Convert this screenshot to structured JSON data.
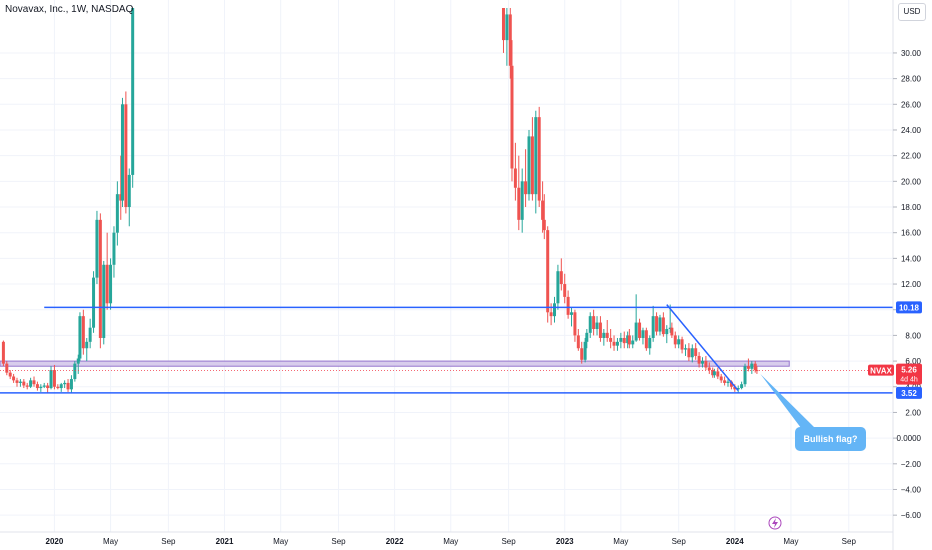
{
  "header": {
    "title": "Novavax, Inc., 1W, NASDAQ",
    "currency_label": "USD"
  },
  "colors": {
    "up": "#26a69a",
    "down": "#ef5350",
    "level_line": "#2962ff",
    "zone_fill": "#d1c4e9",
    "zone_border": "#9575cd",
    "price_tag": "#f23645",
    "callout": "#64b5f6"
  },
  "chart_data": {
    "type": "candlestick",
    "title": "Novavax, Inc., 1W, NASDAQ",
    "ylim": [
      -7.0,
      33.5
    ],
    "y_ticks": [
      "30.00",
      "28.00",
      "26.00",
      "24.00",
      "22.00",
      "20.00",
      "18.00",
      "16.00",
      "14.00",
      "12.00",
      "10.00",
      "8.00",
      "6.00",
      "4.00",
      "2.00",
      "0.0000",
      "−2.00",
      "−4.00",
      "−6.00"
    ],
    "y_tick_values": [
      30,
      28,
      26,
      24,
      22,
      20,
      18,
      16,
      14,
      12,
      10,
      8,
      6,
      4,
      2,
      0,
      -2,
      -4,
      -6
    ],
    "x_ticks": [
      {
        "label": "2020",
        "t": 2020.0,
        "bold": true
      },
      {
        "label": "May",
        "t": 2020.33,
        "bold": false
      },
      {
        "label": "Sep",
        "t": 2020.67,
        "bold": false
      },
      {
        "label": "2021",
        "t": 2021.0,
        "bold": true
      },
      {
        "label": "May",
        "t": 2021.33,
        "bold": false
      },
      {
        "label": "Sep",
        "t": 2021.67,
        "bold": false
      },
      {
        "label": "2022",
        "t": 2022.0,
        "bold": true
      },
      {
        "label": "May",
        "t": 2022.33,
        "bold": false
      },
      {
        "label": "Sep",
        "t": 2022.67,
        "bold": false
      },
      {
        "label": "2023",
        "t": 2023.0,
        "bold": true
      },
      {
        "label": "May",
        "t": 2023.33,
        "bold": false
      },
      {
        "label": "Sep",
        "t": 2023.67,
        "bold": false
      },
      {
        "label": "2024",
        "t": 2024.0,
        "bold": true
      },
      {
        "label": "May",
        "t": 2024.33,
        "bold": false
      },
      {
        "label": "Sep",
        "t": 2024.67,
        "bold": false
      }
    ],
    "xlim": [
      2019.68,
      2024.93
    ],
    "candles": [
      [
        2019.7,
        7.5,
        7.6,
        5.6,
        5.8
      ],
      [
        2019.72,
        5.8,
        6.0,
        4.9,
        5.1
      ],
      [
        2019.74,
        5.1,
        5.3,
        4.6,
        4.8
      ],
      [
        2019.76,
        4.8,
        5.0,
        4.3,
        4.5
      ],
      [
        2019.78,
        4.5,
        4.7,
        4.0,
        4.3
      ],
      [
        2019.8,
        4.3,
        4.6,
        4.0,
        4.4
      ],
      [
        2019.82,
        4.4,
        4.6,
        3.9,
        4.1
      ],
      [
        2019.84,
        4.1,
        4.3,
        3.8,
        4.0
      ],
      [
        2019.86,
        4.0,
        4.7,
        3.9,
        4.5
      ],
      [
        2019.88,
        4.5,
        4.8,
        4.0,
        4.2
      ],
      [
        2019.9,
        4.2,
        4.4,
        3.7,
        3.9
      ],
      [
        2019.92,
        3.9,
        4.2,
        3.6,
        4.0
      ],
      [
        2019.94,
        4.0,
        4.3,
        3.9,
        4.1
      ],
      [
        2019.96,
        4.1,
        4.3,
        3.5,
        3.9
      ],
      [
        2019.98,
        3.9,
        5.6,
        3.8,
        5.3
      ],
      [
        2020.0,
        5.3,
        5.7,
        3.8,
        4.0
      ],
      [
        2020.02,
        4.0,
        4.2,
        3.8,
        3.9
      ],
      [
        2020.04,
        3.9,
        4.3,
        3.6,
        4.2
      ],
      [
        2020.06,
        4.2,
        4.5,
        3.9,
        4.3
      ],
      [
        2020.08,
        4.3,
        4.6,
        3.6,
        3.8
      ],
      [
        2020.1,
        3.8,
        4.9,
        3.5,
        4.6
      ],
      [
        2020.12,
        4.6,
        6.0,
        4.4,
        5.8
      ],
      [
        2020.14,
        5.8,
        6.5,
        5.0,
        6.2
      ],
      [
        2020.15,
        6.2,
        9.8,
        6.0,
        9.5
      ],
      [
        2020.17,
        9.5,
        10.0,
        6.5,
        7.0
      ],
      [
        2020.19,
        7.0,
        7.8,
        6.0,
        7.5
      ],
      [
        2020.21,
        7.5,
        9.3,
        7.0,
        8.6
      ],
      [
        2020.23,
        8.6,
        13.0,
        8.2,
        12.5
      ],
      [
        2020.25,
        12.5,
        17.7,
        12.0,
        17.0
      ],
      [
        2020.27,
        17.0,
        17.5,
        7.0,
        7.8
      ],
      [
        2020.29,
        7.8,
        13.8,
        7.3,
        13.5
      ],
      [
        2020.31,
        13.5,
        16.0,
        10.0,
        10.5
      ],
      [
        2020.33,
        10.5,
        14.0,
        10.0,
        13.5
      ],
      [
        2020.35,
        13.5,
        16.5,
        12.5,
        16.0
      ],
      [
        2020.37,
        16.0,
        20.0,
        15.0,
        19.0
      ],
      [
        2020.39,
        19.0,
        22.0,
        17.0,
        18.5
      ],
      [
        2020.4,
        18.5,
        26.5,
        18.0,
        26.0
      ],
      [
        2020.42,
        26.0,
        27.0,
        17.5,
        18.0
      ],
      [
        2020.44,
        18.0,
        21.0,
        16.5,
        20.5
      ],
      [
        2020.46,
        20.5,
        34.0,
        19.5,
        34.0
      ],
      [
        2022.64,
        33.5,
        34.0,
        30.0,
        31.0
      ],
      [
        2022.66,
        31.0,
        34.0,
        29.0,
        33.0
      ],
      [
        2022.68,
        33.0,
        34.0,
        28.0,
        29.0
      ],
      [
        2022.69,
        29.0,
        31.0,
        20.0,
        21.0
      ],
      [
        2022.71,
        21.0,
        23.0,
        18.5,
        19.5
      ],
      [
        2022.73,
        19.5,
        22.0,
        16.2,
        17.0
      ],
      [
        2022.75,
        17.0,
        21.0,
        16.0,
        20.0
      ],
      [
        2022.77,
        20.0,
        22.5,
        18.0,
        19.0
      ],
      [
        2022.79,
        19.0,
        24.0,
        18.5,
        23.5
      ],
      [
        2022.81,
        23.5,
        25.0,
        18.5,
        19.0
      ],
      [
        2022.83,
        19.0,
        25.5,
        17.5,
        25.0
      ],
      [
        2022.85,
        25.0,
        25.8,
        18.0,
        18.5
      ],
      [
        2022.87,
        18.5,
        20.0,
        16.0,
        17.0
      ],
      [
        2022.88,
        17.0,
        19.0,
        15.5,
        16.2
      ],
      [
        2022.9,
        16.2,
        16.5,
        9.0,
        9.8
      ],
      [
        2022.92,
        9.8,
        10.5,
        8.8,
        9.5
      ],
      [
        2022.94,
        9.5,
        11.0,
        9.0,
        10.5
      ],
      [
        2022.96,
        10.5,
        13.5,
        10.0,
        13.0
      ],
      [
        2022.98,
        13.0,
        14.0,
        11.5,
        12.0
      ],
      [
        2023.0,
        12.0,
        12.8,
        10.5,
        11.0
      ],
      [
        2023.02,
        11.0,
        11.5,
        9.3,
        9.6
      ],
      [
        2023.04,
        9.6,
        10.2,
        8.7,
        9.8
      ],
      [
        2023.06,
        9.8,
        10.0,
        7.5,
        8.0
      ],
      [
        2023.08,
        8.0,
        8.5,
        6.8,
        7.0
      ],
      [
        2023.1,
        7.0,
        7.5,
        5.8,
        6.1
      ],
      [
        2023.12,
        6.1,
        7.8,
        5.9,
        7.5
      ],
      [
        2023.13,
        7.5,
        8.5,
        7.0,
        8.2
      ],
      [
        2023.15,
        8.2,
        9.8,
        7.8,
        9.5
      ],
      [
        2023.17,
        9.5,
        10.0,
        8.0,
        8.5
      ],
      [
        2023.19,
        8.5,
        9.5,
        8.0,
        9.0
      ],
      [
        2023.21,
        9.0,
        9.5,
        7.5,
        7.8
      ],
      [
        2023.23,
        7.8,
        8.5,
        7.2,
        8.2
      ],
      [
        2023.25,
        8.2,
        9.2,
        7.5,
        7.8
      ],
      [
        2023.27,
        7.8,
        8.5,
        7.0,
        7.5
      ],
      [
        2023.29,
        7.5,
        8.0,
        6.8,
        7.2
      ],
      [
        2023.31,
        7.2,
        7.8,
        6.8,
        7.5
      ],
      [
        2023.33,
        7.5,
        8.2,
        7.0,
        7.8
      ],
      [
        2023.35,
        7.8,
        8.3,
        7.0,
        7.4
      ],
      [
        2023.37,
        7.4,
        8.3,
        7.0,
        8.0
      ],
      [
        2023.38,
        8.0,
        8.5,
        7.0,
        7.3
      ],
      [
        2023.4,
        7.3,
        8.0,
        7.0,
        7.6
      ],
      [
        2023.42,
        7.6,
        11.2,
        7.5,
        9.0
      ],
      [
        2023.44,
        9.0,
        9.3,
        7.6,
        7.8
      ],
      [
        2023.46,
        7.8,
        8.6,
        7.3,
        8.4
      ],
      [
        2023.48,
        8.4,
        8.6,
        6.8,
        7.0
      ],
      [
        2023.5,
        7.0,
        8.0,
        6.5,
        7.8
      ],
      [
        2023.52,
        7.8,
        10.3,
        7.5,
        9.5
      ],
      [
        2023.54,
        9.5,
        9.8,
        8.0,
        8.3
      ],
      [
        2023.56,
        8.3,
        9.6,
        8.0,
        9.4
      ],
      [
        2023.58,
        9.4,
        9.8,
        7.9,
        8.1
      ],
      [
        2023.6,
        8.1,
        8.8,
        7.4,
        8.5
      ],
      [
        2023.62,
        8.5,
        10.4,
        8.2,
        8.6
      ],
      [
        2023.63,
        8.6,
        9.0,
        7.8,
        8.0
      ],
      [
        2023.65,
        8.0,
        8.3,
        7.0,
        7.3
      ],
      [
        2023.67,
        7.3,
        8.0,
        7.0,
        7.7
      ],
      [
        2023.69,
        7.7,
        7.9,
        6.6,
        6.9
      ],
      [
        2023.71,
        6.9,
        7.3,
        6.4,
        7.0
      ],
      [
        2023.73,
        7.0,
        7.4,
        6.0,
        6.3
      ],
      [
        2023.75,
        6.3,
        7.3,
        5.9,
        7.0
      ],
      [
        2023.77,
        7.0,
        7.4,
        6.1,
        6.4
      ],
      [
        2023.79,
        6.4,
        6.7,
        5.5,
        5.8
      ],
      [
        2023.81,
        5.8,
        6.3,
        5.5,
        6.0
      ],
      [
        2023.83,
        6.0,
        6.4,
        5.3,
        5.5
      ],
      [
        2023.85,
        5.5,
        5.9,
        5.0,
        5.3
      ],
      [
        2023.87,
        5.3,
        5.5,
        4.7,
        4.9
      ],
      [
        2023.88,
        4.9,
        5.4,
        4.7,
        5.2
      ],
      [
        2023.9,
        5.2,
        5.5,
        4.6,
        4.8
      ],
      [
        2023.92,
        4.8,
        5.0,
        4.3,
        4.5
      ],
      [
        2023.94,
        4.5,
        4.8,
        4.1,
        4.3
      ],
      [
        2023.96,
        4.3,
        4.6,
        4.0,
        4.4
      ],
      [
        2023.98,
        4.4,
        4.5,
        3.8,
        4.0
      ],
      [
        2024.0,
        4.0,
        4.2,
        3.6,
        3.8
      ],
      [
        2024.02,
        3.8,
        4.1,
        3.5,
        3.9
      ],
      [
        2024.04,
        3.9,
        4.4,
        3.8,
        4.2
      ],
      [
        2024.06,
        4.2,
        5.8,
        4.0,
        5.6
      ],
      [
        2024.08,
        5.6,
        6.2,
        5.2,
        5.4
      ],
      [
        2024.1,
        5.4,
        6.0,
        5.0,
        5.8
      ],
      [
        2024.12,
        5.8,
        6.0,
        5.1,
        5.3
      ],
      [
        2024.13,
        5.3,
        5.6,
        5.0,
        5.26
      ]
    ],
    "horizontal_levels": [
      {
        "value": 10.18,
        "label": "10.18",
        "t_start": 2019.94
      },
      {
        "value": 3.52,
        "label": "3.52",
        "t_start": 2019.68
      }
    ],
    "zone": {
      "low": 5.6,
      "high": 6.0,
      "t_start": 2019.68,
      "t_end": 2024.32
    },
    "trendline": {
      "t1": 2023.6,
      "v1": 10.4,
      "t2": 2024.02,
      "v2": 3.7
    },
    "price_line": 5.26,
    "last_price": {
      "symbol": "NVAX",
      "price": "5.26",
      "countdown": "4d 4h"
    },
    "annotation": {
      "text": "Bullish flag?",
      "anchor_t": 2024.15,
      "anchor_v": 5.0
    }
  }
}
